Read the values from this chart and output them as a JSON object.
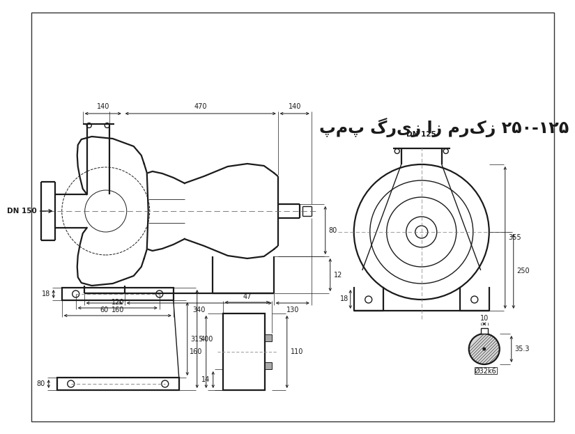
{
  "title": "پمپ گریز از مرکز ۲۵۰-۱۲۵",
  "bg_color": "#ffffff",
  "lc": "#1a1a1a",
  "lw": 1.0,
  "lwt": 1.6
}
